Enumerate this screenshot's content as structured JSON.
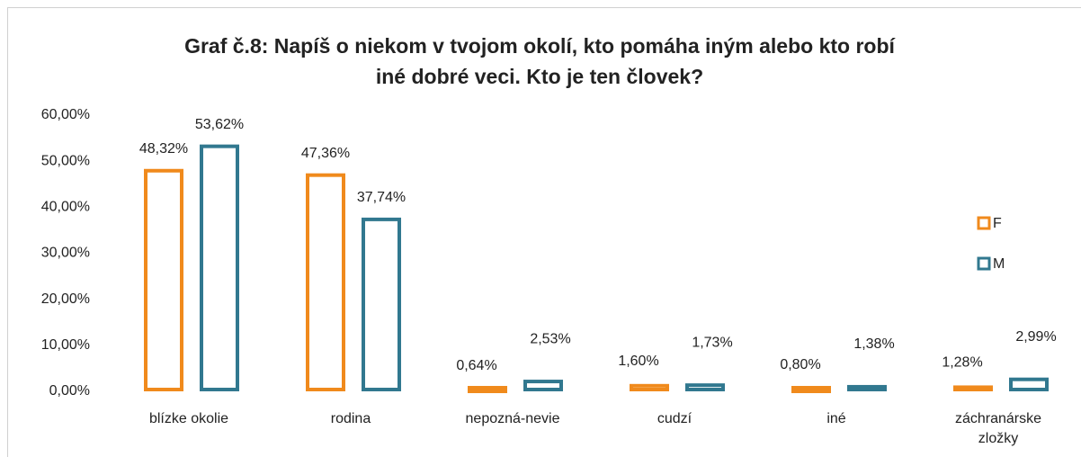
{
  "chart_data": {
    "type": "bar",
    "title": "Graf č.8: Napíš o niekom v tvojom okolí, kto pomáha iným alebo kto robí iné dobré veci. Kto je ten človek?",
    "categories": [
      "blízke okolie",
      "rodina",
      "nepozná-nevie",
      "cudzí",
      "iné",
      "záchranárske zložky"
    ],
    "series": [
      {
        "name": "F",
        "color": "#f08a1c",
        "values": [
          48.32,
          47.36,
          0.64,
          1.6,
          0.8,
          1.28
        ],
        "value_labels": [
          "48,32%",
          "47,36%",
          "0,64%",
          "1,60%",
          "0,80%",
          "1,28%"
        ]
      },
      {
        "name": "M",
        "color": "#31788f",
        "values": [
          53.62,
          37.74,
          2.53,
          1.73,
          1.38,
          2.99
        ],
        "value_labels": [
          "53,62%",
          "37,74%",
          "2,53%",
          "1,73%",
          "1,38%",
          "2,99%"
        ]
      }
    ],
    "ylim": [
      0,
      60
    ],
    "yticks": [
      {
        "value": 0,
        "label": "0,00%"
      },
      {
        "value": 10,
        "label": "10,00%"
      },
      {
        "value": 20,
        "label": "20,00%"
      },
      {
        "value": 30,
        "label": "30,00%"
      },
      {
        "value": 40,
        "label": "40,00%"
      },
      {
        "value": 50,
        "label": "50,00%"
      },
      {
        "value": 60,
        "label": "60,00%"
      }
    ],
    "grid": false,
    "legend": "right"
  }
}
